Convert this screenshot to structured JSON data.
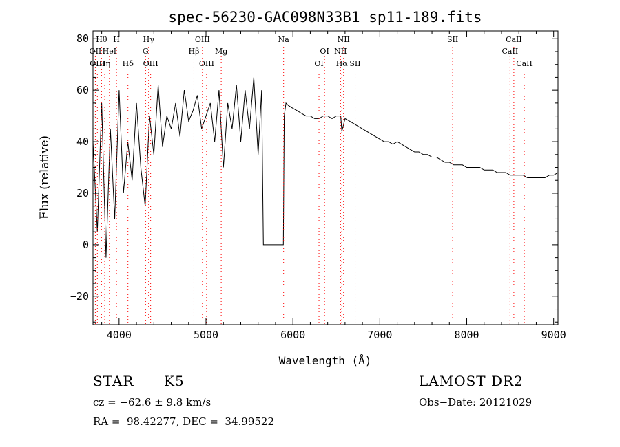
{
  "chart_data": {
    "type": "line",
    "title": "spec-56230-GAC098N33B1_sp11-189.fits",
    "xlabel": "Wavelength (Å)",
    "ylabel": "Flux (relative)",
    "xlim": [
      3700,
      9050
    ],
    "ylim": [
      -31,
      83
    ],
    "xticks": [
      4000,
      5000,
      6000,
      7000,
      8000,
      9000
    ],
    "yticks": [
      -20,
      0,
      20,
      40,
      60,
      80
    ],
    "tick_labels_x": [
      "4000",
      "5000",
      "6000",
      "7000",
      "8000",
      "9000"
    ],
    "tick_labels_y": [
      "−20",
      "0",
      "20",
      "40",
      "60",
      "80"
    ],
    "grid": false,
    "line_color": "#000000",
    "marker_color": "#ff0000",
    "series": [
      {
        "x": [
          3700,
          3750,
          3800,
          3850,
          3900,
          3950,
          4000,
          4050,
          4100,
          4150,
          4200,
          4250,
          4300,
          4350,
          4400,
          4450,
          4500,
          4550,
          4600,
          4650,
          4700,
          4750,
          4800,
          4850,
          4900,
          4950,
          5000,
          5050,
          5100,
          5150,
          5200,
          5250,
          5300,
          5350,
          5400,
          5450,
          5500,
          5550,
          5600,
          5640,
          5660,
          5700,
          5800,
          5890,
          5900,
          5920,
          5950,
          6000,
          6050,
          6100,
          6150,
          6200,
          6250,
          6300,
          6350,
          6400,
          6450,
          6500,
          6550,
          6563,
          6600,
          6650,
          6700,
          6750,
          6800,
          6850,
          6900,
          6950,
          7000,
          7050,
          7100,
          7150,
          7200,
          7250,
          7300,
          7350,
          7400,
          7450,
          7500,
          7550,
          7600,
          7650,
          7700,
          7750,
          7800,
          7850,
          7900,
          7950,
          8000,
          8050,
          8100,
          8150,
          8200,
          8250,
          8300,
          8350,
          8400,
          8450,
          8500,
          8550,
          8600,
          8650,
          8700,
          8750,
          8800,
          8850,
          8900,
          8950,
          9000,
          9050
        ],
        "y": [
          40,
          5,
          55,
          -5,
          45,
          10,
          60,
          20,
          40,
          25,
          55,
          30,
          15,
          50,
          35,
          62,
          38,
          50,
          45,
          55,
          42,
          60,
          48,
          52,
          58,
          45,
          50,
          55,
          40,
          60,
          30,
          55,
          45,
          62,
          40,
          60,
          45,
          65,
          35,
          60,
          0,
          0,
          0,
          0,
          50,
          55,
          54,
          53,
          52,
          51,
          50,
          50,
          49,
          49,
          50,
          50,
          49,
          50,
          50,
          44,
          49,
          48,
          47,
          46,
          45,
          44,
          43,
          42,
          41,
          40,
          40,
          39,
          40,
          39,
          38,
          37,
          36,
          36,
          35,
          35,
          34,
          34,
          33,
          32,
          32,
          31,
          31,
          31,
          30,
          30,
          30,
          30,
          29,
          29,
          29,
          28,
          28,
          28,
          27,
          27,
          27,
          27,
          26,
          26,
          26,
          26,
          26,
          27,
          27,
          28
        ]
      }
    ],
    "line_markers": [
      {
        "label": "Hθ",
        "x": 3798,
        "row": 0
      },
      {
        "label": "H",
        "x": 3970,
        "row": 0
      },
      {
        "label": "Hγ",
        "x": 4340,
        "row": 0
      },
      {
        "label": "OIII",
        "x": 4959,
        "row": 0
      },
      {
        "label": "Na",
        "x": 5893,
        "row": 0
      },
      {
        "label": "NII",
        "x": 6583,
        "row": 0
      },
      {
        "label": "SII",
        "x": 7838,
        "row": 0
      },
      {
        "label": "CaII",
        "x": 8542,
        "row": 0
      },
      {
        "label": "OII",
        "x": 3727,
        "row": 1
      },
      {
        "label": "HeI",
        "x": 3889,
        "row": 1
      },
      {
        "label": "G",
        "x": 4305,
        "row": 1
      },
      {
        "label": "Hβ",
        "x": 4861,
        "row": 1
      },
      {
        "label": "Mg",
        "x": 5175,
        "row": 1
      },
      {
        "label": "OI",
        "x": 6364,
        "row": 1
      },
      {
        "label": "NII",
        "x": 6548,
        "row": 1
      },
      {
        "label": "CaII",
        "x": 8498,
        "row": 1
      },
      {
        "label": "OIII",
        "x": 3750,
        "row": 2
      },
      {
        "label": "Hη",
        "x": 3835,
        "row": 2
      },
      {
        "label": "Hδ",
        "x": 4102,
        "row": 2
      },
      {
        "label": "OIII",
        "x": 4363,
        "row": 2
      },
      {
        "label": "OIII",
        "x": 5007,
        "row": 2
      },
      {
        "label": "OI",
        "x": 6300,
        "row": 2
      },
      {
        "label": "Hα",
        "x": 6563,
        "row": 2
      },
      {
        "label": "SII",
        "x": 6716,
        "row": 2
      },
      {
        "label": "CaII",
        "x": 8662,
        "row": 2
      }
    ]
  },
  "info": {
    "object_class": "STAR",
    "subclass": "K5",
    "survey": "LAMOST DR2",
    "cz": "cz = −62.6 ± 9.8 km/s",
    "obs_date": "Obs−Date: 20121029",
    "coords": "RA =  98.42277, DEC =  34.99522"
  }
}
